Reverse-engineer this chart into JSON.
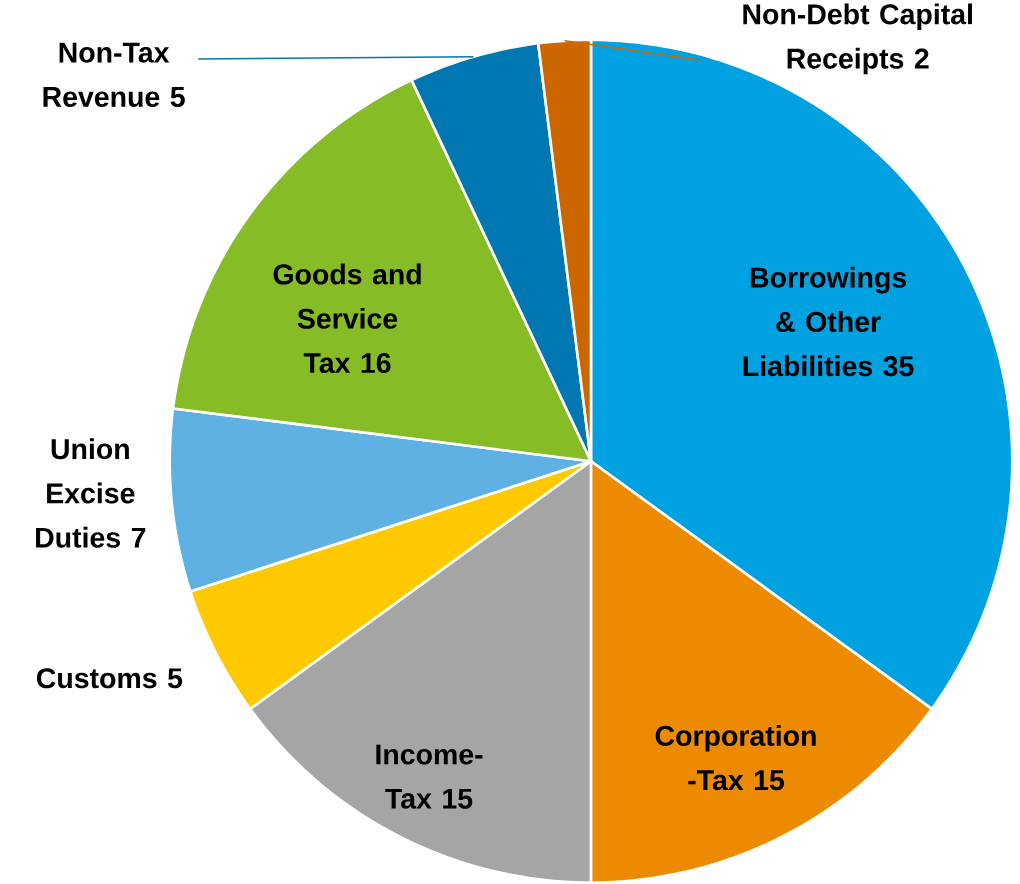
{
  "chart_data": {
    "type": "pie",
    "categories": [
      "Borrowings & Other Liabilities",
      "Corporation -Tax",
      "Income-Tax",
      "Customs",
      "Union Excise Duties",
      "Goods and Service Tax",
      "Non-Tax Revenue",
      "Non-Debt Capital Receipts"
    ],
    "values": [
      35,
      15,
      15,
      5,
      7,
      16,
      5,
      2
    ],
    "colors": [
      "#00a1e0",
      "#ec8a00",
      "#a5a5a5",
      "#ffc900",
      "#5eb1e2",
      "#86bc25",
      "#0077b0",
      "#cc6600"
    ],
    "data_labels": true
  }
}
